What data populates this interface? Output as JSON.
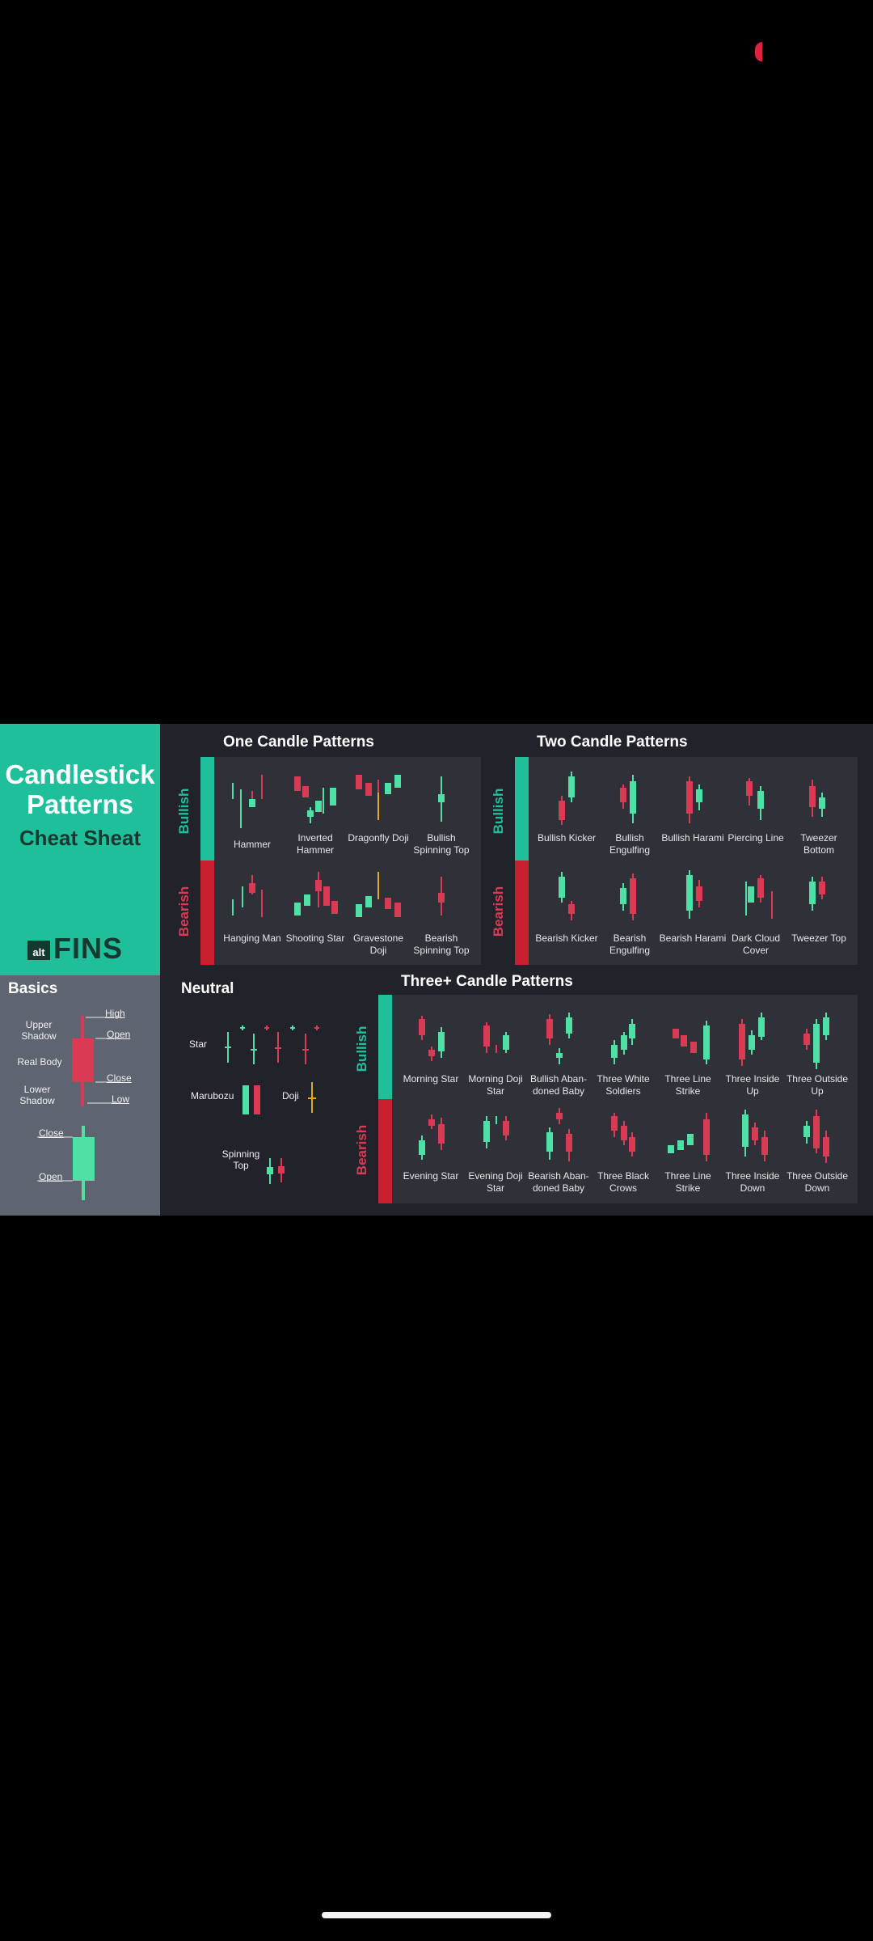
{
  "colors": {
    "bull": "#4fe0a6",
    "bear": "#d93b55",
    "doji": "#e0a91e",
    "teal": "#20bf9b",
    "bg": "#22222a"
  },
  "title": {
    "line1": "Candlestick",
    "line2": "Patterns",
    "subtitle": "Cheat Sheat"
  },
  "logo": {
    "small": "alt",
    "main": "FINS"
  },
  "basics": {
    "title": "Basics",
    "high": "High",
    "open": "Open",
    "close": "Close",
    "low": "Low",
    "upper_shadow": "Upper Shadow",
    "real_body": "Real Body",
    "lower_shadow": "Lower Shadow",
    "close2": "Close",
    "open2": "Open"
  },
  "neutral": {
    "title": "Neutral",
    "star": "Star",
    "marubozu": "Marubozu",
    "doji": "Doji",
    "spinning_top": "Spinning Top"
  },
  "side": {
    "bullish": "Bullish",
    "bearish": "Bearish"
  },
  "one": {
    "title": "One Candle Patterns",
    "bull": [
      "Hammer",
      "Inverted Hammer",
      "Dragonfly Doji",
      "Bullish Spinning Top"
    ],
    "bear": [
      "Hanging Man",
      "Shooting Star",
      "Gravestone Doji",
      "Bearish Spinning Top"
    ]
  },
  "two": {
    "title": "Two Candle Patterns",
    "bull": [
      "Bullish Kicker",
      "Bullish Engulfing",
      "Bullish Harami",
      "Piercing Line",
      "Tweezer Bottom"
    ],
    "bear": [
      "Bearish Kicker",
      "Bearish Engulfing",
      "Bearish Harami",
      "Dark Cloud Cover",
      "Tweezer Top"
    ]
  },
  "three": {
    "title": "Three+ Candle Patterns",
    "bull": [
      "Morning Star",
      "Morning Doji Star",
      "Bullish Aban-doned Baby",
      "Three White Soldiers",
      "Three Line Strike",
      "Three Inside Up",
      "Three Outside Up"
    ],
    "bear": [
      "Evening Star",
      "Evening Doji Star",
      "Bearish Aban-doned Baby",
      "Three Black Crows",
      "Three Line Strike",
      "Three Inside Down",
      "Three Outside Down"
    ]
  }
}
